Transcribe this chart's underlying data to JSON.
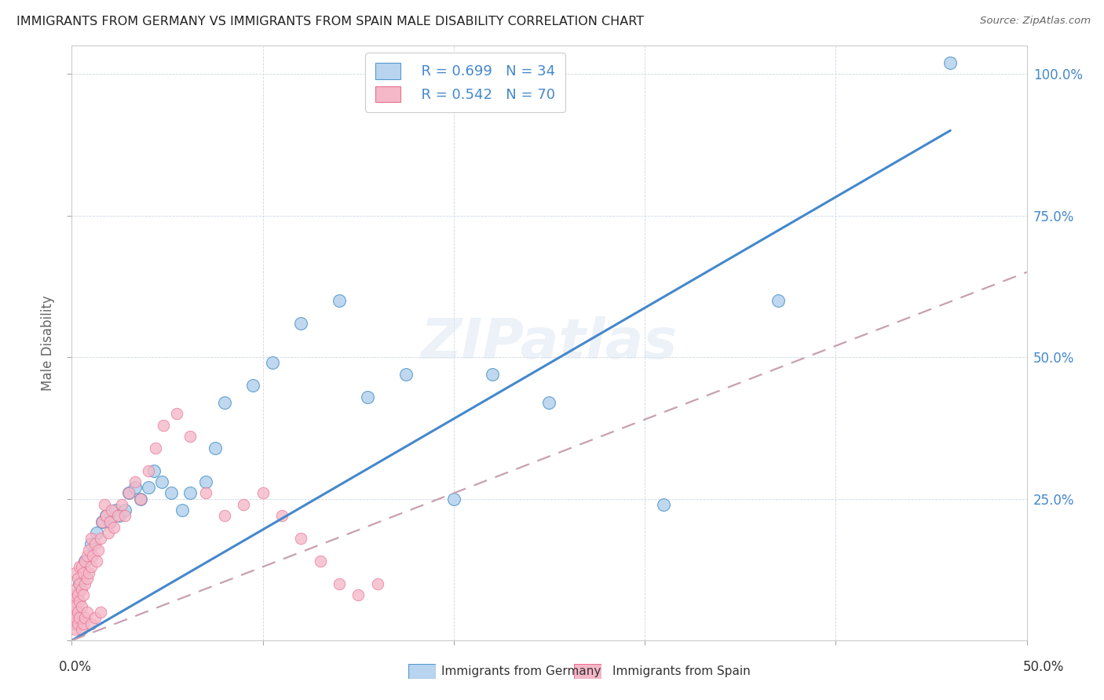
{
  "title": "IMMIGRANTS FROM GERMANY VS IMMIGRANTS FROM SPAIN MALE DISABILITY CORRELATION CHART",
  "source": "Source: ZipAtlas.com",
  "ylabel": "Male Disability",
  "legend_blue_r": "R = 0.699",
  "legend_blue_n": "N = 34",
  "legend_pink_r": "R = 0.542",
  "legend_pink_n": "N = 70",
  "legend_blue_label": "Immigrants from Germany",
  "legend_pink_label": "Immigrants from Spain",
  "blue_fill": "#b8d4ee",
  "blue_edge": "#5599cc",
  "blue_line": "#4488cc",
  "pink_fill": "#f4b8c8",
  "pink_edge": "#e87090",
  "pink_dash": "#c8a0b0",
  "watermark": "ZIPatlas",
  "xlim": [
    0.0,
    0.5
  ],
  "ylim": [
    0.0,
    1.05
  ],
  "blue_x": [
    0.004,
    0.007,
    0.01,
    0.013,
    0.016,
    0.018,
    0.02,
    0.023,
    0.025,
    0.028,
    0.03,
    0.033,
    0.036,
    0.04,
    0.043,
    0.047,
    0.052,
    0.058,
    0.062,
    0.07,
    0.075,
    0.08,
    0.095,
    0.105,
    0.12,
    0.14,
    0.155,
    0.175,
    0.2,
    0.22,
    0.25,
    0.31,
    0.37,
    0.46
  ],
  "blue_y": [
    0.1,
    0.14,
    0.17,
    0.19,
    0.21,
    0.22,
    0.21,
    0.23,
    0.22,
    0.23,
    0.26,
    0.27,
    0.25,
    0.27,
    0.3,
    0.28,
    0.26,
    0.23,
    0.26,
    0.28,
    0.34,
    0.42,
    0.45,
    0.49,
    0.56,
    0.6,
    0.43,
    0.47,
    0.25,
    0.47,
    0.42,
    0.24,
    0.6,
    1.02
  ],
  "pink_x": [
    0.001,
    0.001,
    0.001,
    0.001,
    0.002,
    0.002,
    0.002,
    0.002,
    0.003,
    0.003,
    0.003,
    0.004,
    0.004,
    0.004,
    0.005,
    0.005,
    0.005,
    0.006,
    0.006,
    0.007,
    0.007,
    0.008,
    0.008,
    0.009,
    0.009,
    0.01,
    0.01,
    0.011,
    0.012,
    0.013,
    0.014,
    0.015,
    0.016,
    0.017,
    0.018,
    0.019,
    0.02,
    0.021,
    0.022,
    0.024,
    0.026,
    0.028,
    0.03,
    0.033,
    0.036,
    0.04,
    0.044,
    0.048,
    0.055,
    0.062,
    0.07,
    0.08,
    0.09,
    0.1,
    0.11,
    0.12,
    0.13,
    0.14,
    0.15,
    0.16,
    0.002,
    0.003,
    0.004,
    0.005,
    0.006,
    0.007,
    0.008,
    0.01,
    0.012,
    0.015
  ],
  "pink_y": [
    0.03,
    0.05,
    0.07,
    0.08,
    0.04,
    0.06,
    0.09,
    0.12,
    0.05,
    0.08,
    0.11,
    0.07,
    0.1,
    0.13,
    0.06,
    0.09,
    0.13,
    0.08,
    0.12,
    0.1,
    0.14,
    0.11,
    0.15,
    0.12,
    0.16,
    0.13,
    0.18,
    0.15,
    0.17,
    0.14,
    0.16,
    0.18,
    0.21,
    0.24,
    0.22,
    0.19,
    0.21,
    0.23,
    0.2,
    0.22,
    0.24,
    0.22,
    0.26,
    0.28,
    0.25,
    0.3,
    0.34,
    0.38,
    0.4,
    0.36,
    0.26,
    0.22,
    0.24,
    0.26,
    0.22,
    0.18,
    0.14,
    0.1,
    0.08,
    0.1,
    0.02,
    0.03,
    0.04,
    0.02,
    0.03,
    0.04,
    0.05,
    0.03,
    0.04,
    0.05
  ],
  "blue_line_x0": 0.0,
  "blue_line_y0": 0.0,
  "blue_line_x1": 0.46,
  "blue_line_y1": 0.9,
  "pink_line_x0": 0.0,
  "pink_line_y0": 0.0,
  "pink_line_x1": 0.5,
  "pink_line_y1": 0.65
}
